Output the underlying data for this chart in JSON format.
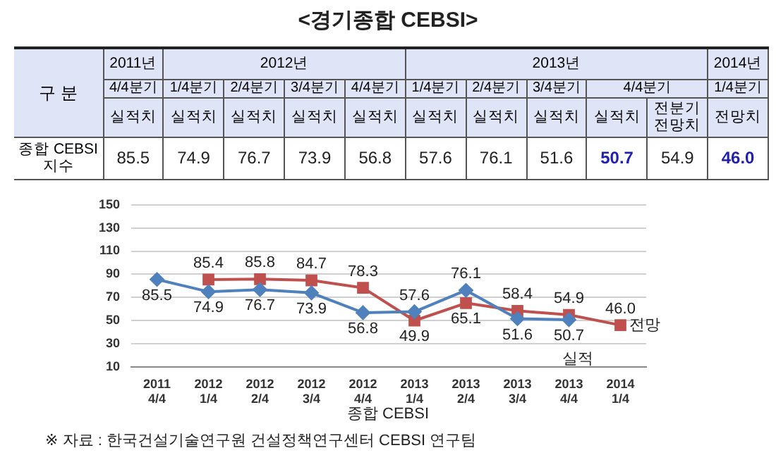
{
  "chart_data": {
    "type": "line",
    "title": "<경기종합 CEBSI>",
    "xlabel": "종합 CEBSI",
    "categories": [
      "2011 4/4",
      "2012 1/4",
      "2012 2/4",
      "2012 3/4",
      "2012 4/4",
      "2013 1/4",
      "2013 2/4",
      "2013 3/4",
      "2013 4/4",
      "2014 1/4"
    ],
    "series": [
      {
        "name": "실적",
        "color": "#4f81bd",
        "marker": "diamond",
        "values": [
          85.5,
          74.9,
          76.7,
          73.9,
          56.8,
          57.6,
          76.1,
          51.6,
          50.7,
          null
        ],
        "value_labels": [
          "85.5",
          "74.9",
          "76.7",
          "73.9",
          "56.8",
          "57.6",
          "76.1",
          "51.6",
          "50.7",
          null
        ]
      },
      {
        "name": "전망",
        "color": "#c0504d",
        "marker": "square",
        "values": [
          null,
          85.4,
          85.8,
          84.7,
          78.3,
          49.9,
          65.1,
          58.4,
          54.9,
          46.0
        ],
        "value_labels": [
          null,
          "85.4",
          "85.8",
          "84.7",
          "78.3",
          "49.9",
          "65.1",
          "58.4",
          "54.9",
          "46.0"
        ]
      }
    ],
    "ylim": [
      10,
      150
    ],
    "yticks": [
      10,
      30,
      50,
      70,
      90,
      110,
      130,
      150
    ],
    "grid": "y",
    "legend": false,
    "annotations": [
      "※ 자료 : 한국건설기술연구원 건설정책연구센터 CEBSI 연구팀",
      "구 분",
      "2011년",
      "2012년",
      "2013년",
      "2014년",
      "4/4분기",
      "1/4분기",
      "2/4분기",
      "3/4분기",
      "4/4분기",
      "1/4분기",
      "2/4분기",
      "3/4분기",
      "4/4분기",
      "1/4분기",
      "실적치",
      "실적치",
      "실적치",
      "실적치",
      "실적치",
      "실적치",
      "실적치",
      "실적치",
      "실적치",
      "전분기 전망치",
      "전망치",
      "종합 CEBSI지수",
      "85.5",
      "74.9",
      "76.7",
      "73.9",
      "56.8",
      "57.6",
      "76.1",
      "51.6",
      "50.7",
      "54.9",
      "46.0"
    ]
  }
}
